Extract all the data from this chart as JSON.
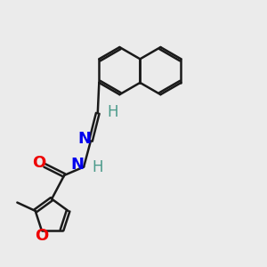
{
  "bg_color": "#ebebeb",
  "bond_color": "#1a1a1a",
  "N_color": "#0000ee",
  "O_color": "#ee0000",
  "H_color": "#4a9a8a",
  "line_width": 1.8,
  "font_size": 13,
  "dbo": 0.06,
  "xlim": [
    0.5,
    9.5
  ],
  "ylim": [
    1.0,
    10.5
  ]
}
